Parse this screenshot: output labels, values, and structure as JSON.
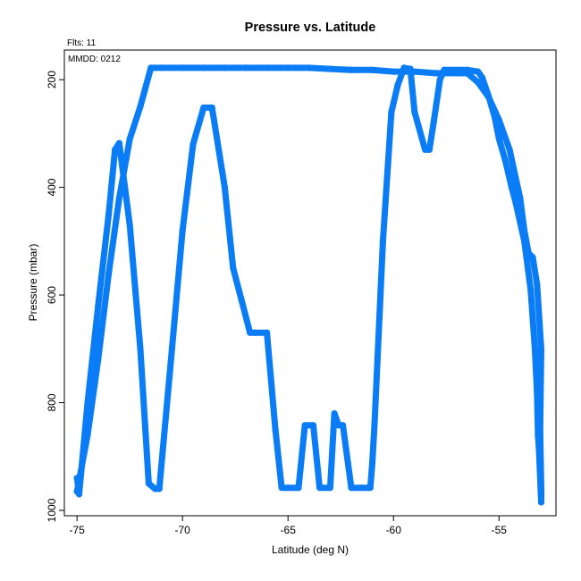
{
  "chart_data": {
    "type": "scatter",
    "title": "Pressure vs. Latitude",
    "xlabel": "Latitude (deg N)",
    "ylabel": "Pressure (mbar)",
    "xlim": [
      -75.6,
      -52.3
    ],
    "ylim": [
      1010,
      145
    ],
    "y_inverted": true,
    "xticks": [
      -75,
      -70,
      -65,
      -60,
      -55
    ],
    "yticks": [
      200,
      400,
      600,
      800,
      1000
    ],
    "grid": false,
    "series": [
      {
        "color": "#0a7cf5",
        "x": [
          -75.0,
          -74.9,
          -74.5,
          -74.0,
          -73.5,
          -73.2,
          -73.0,
          -72.5,
          -72.0,
          -71.6,
          -71.3,
          -71.1,
          -70.5,
          -70.0,
          -69.5,
          -69.0,
          -68.6,
          -68.0,
          -67.6,
          -67.2,
          -66.8,
          -66.6,
          -66.0,
          -65.6,
          -65.3,
          -65.0,
          -64.5,
          -64.2,
          -64.0,
          -63.8,
          -63.5,
          -63.0,
          -62.8,
          -62.6,
          -62.4,
          -62.0,
          -61.5,
          -61.1,
          -61.0,
          -60.9,
          -60.5,
          -60.1,
          -59.8,
          -59.5,
          -59.2,
          -59.0,
          -58.5,
          -58.3,
          -58.1,
          -57.8,
          -57.6,
          -57.0,
          -56.5,
          -56.0,
          -55.8,
          -55.5,
          -55.2,
          -55.0,
          -54.7,
          -54.4,
          -54.2,
          -53.8,
          -53.5,
          -53.3,
          -53.2,
          -53.15,
          -53.1,
          -53.0,
          -53.0,
          -53.05,
          -53.0,
          -53.2,
          -53.4,
          -53.6,
          -53.8,
          -54.0,
          -54.5,
          -55.0,
          -55.5,
          -56.0,
          -56.5,
          -57.0,
          -58.0,
          -59.0,
          -60.0,
          -61.0,
          -62.0,
          -63.0,
          -64.0,
          -65.0,
          -66.0,
          -67.0,
          -68.0,
          -69.0,
          -70.0,
          -71.0,
          -71.5,
          -72.0,
          -72.5,
          -73.0,
          -73.5,
          -74.0,
          -74.5,
          -75.0
        ],
        "y": [
          940,
          970,
          800,
          620,
          450,
          330,
          318,
          470,
          700,
          950,
          960,
          960,
          700,
          480,
          320,
          252,
          252,
          400,
          550,
          610,
          670,
          670,
          670,
          850,
          958,
          958,
          958,
          842,
          842,
          842,
          958,
          958,
          820,
          842,
          842,
          958,
          958,
          958,
          910,
          840,
          500,
          260,
          210,
          178,
          180,
          260,
          330,
          330,
          280,
          200,
          182,
          182,
          182,
          185,
          196,
          230,
          270,
          310,
          350,
          400,
          430,
          500,
          590,
          700,
          780,
          860,
          890,
          985,
          960,
          850,
          700,
          580,
          530,
          522,
          480,
          420,
          330,
          275,
          232,
          205,
          188,
          188,
          188,
          185,
          185,
          182,
          182,
          180,
          178,
          178,
          178,
          178,
          178,
          178,
          178,
          178,
          178,
          250,
          310,
          420,
          560,
          720,
          860,
          965
        ]
      }
    ]
  },
  "annotations": {
    "flts": "Flts: 11",
    "mmdd": "MMDD: 0212"
  }
}
